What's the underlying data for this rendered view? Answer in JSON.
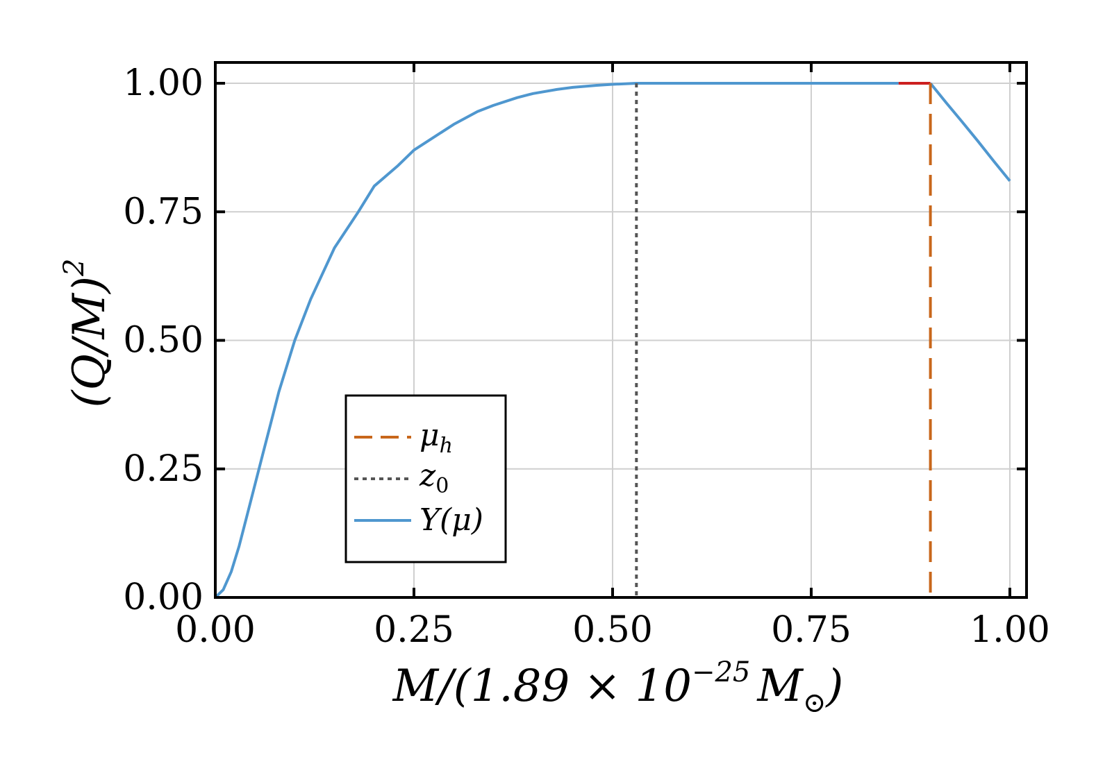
{
  "chart_data": {
    "type": "line",
    "xlabel": "M/(1.89 × 10",
    "xlabel_exp": "−25",
    "xlabel_tail": "M",
    "xlabel_sub": "⊙",
    "xlabel_close": ")",
    "ylabel": "(Q/M)",
    "ylabel_exp": "2",
    "xlim": [
      0,
      1
    ],
    "ylim": [
      0,
      1
    ],
    "grid": true,
    "xticks": [
      0,
      0.25,
      0.5,
      0.75,
      1
    ],
    "xtick_labels": [
      "0.00",
      "0.25",
      "0.50",
      "0.75",
      "1.00"
    ],
    "yticks": [
      0,
      0.25,
      0.5,
      0.75,
      1
    ],
    "ytick_labels": [
      "0.00",
      "0.25",
      "0.50",
      "0.75",
      "1.00"
    ],
    "legend_position": "lower-left",
    "legend": [
      {
        "label": "μ",
        "sub": "h",
        "style": "dashed",
        "color": "#c8671b"
      },
      {
        "label": "z",
        "sub": "0",
        "style": "dotted",
        "color": "#555555"
      },
      {
        "label": "Y(μ)",
        "sub": "",
        "style": "solid",
        "color": "#4f97cf"
      }
    ],
    "series": [
      {
        "label": "Y(μ)",
        "color": "#4f97cf",
        "x": [
          0,
          0.01,
          0.02,
          0.03,
          0.04,
          0.05,
          0.06,
          0.07,
          0.08,
          0.1,
          0.12,
          0.15,
          0.18,
          0.2,
          0.23,
          0.25,
          0.28,
          0.3,
          0.33,
          0.35,
          0.38,
          0.4,
          0.43,
          0.45,
          0.48,
          0.5,
          0.53,
          0.6,
          0.7,
          0.8,
          0.86
        ],
        "y": [
          0,
          0.015,
          0.05,
          0.1,
          0.16,
          0.22,
          0.28,
          0.34,
          0.4,
          0.5,
          0.58,
          0.68,
          0.75,
          0.8,
          0.84,
          0.87,
          0.9,
          0.92,
          0.945,
          0.957,
          0.972,
          0.98,
          0.988,
          0.992,
          0.996,
          0.998,
          1.0,
          1.0,
          1.0,
          1.0,
          1.0
        ]
      },
      {
        "label": "unlabeled red segment",
        "color": "#cc1f1f",
        "x": [
          0.86,
          0.9
        ],
        "y": [
          1.0,
          1.0
        ]
      },
      {
        "label": "Y(μ) tail",
        "color": "#4f97cf",
        "x": [
          0.9,
          0.92,
          0.94,
          0.96,
          0.98,
          1.0
        ],
        "y": [
          1.0,
          0.962,
          0.925,
          0.887,
          0.848,
          0.81
        ]
      }
    ],
    "vlines": [
      {
        "name": "mu_h",
        "x": 0.9,
        "style": "dashed",
        "color": "#c8671b"
      },
      {
        "name": "z_0",
        "x": 0.53,
        "style": "dotted",
        "color": "#555555"
      }
    ]
  }
}
